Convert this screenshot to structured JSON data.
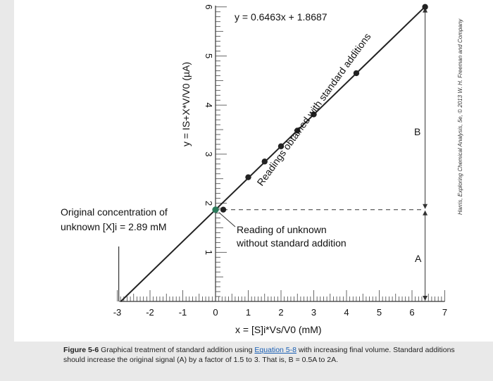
{
  "chart_data": {
    "type": "scatter",
    "equation": "y = 0.6463x + 1.8687",
    "slope": 0.6463,
    "intercept": 1.8687,
    "x_intercept": -2.89,
    "xlabel": "x = [S]i*Vs/V0 (mM)",
    "ylabel": "y = IS+X*V/V0 (µA)",
    "xlim": [
      -3,
      7
    ],
    "ylim": [
      0,
      6
    ],
    "x_ticks": [
      "-3",
      "-2",
      "-1",
      "0",
      "1",
      "2",
      "3",
      "4",
      "5",
      "6",
      "7"
    ],
    "y_ticks": [
      "1",
      "2",
      "3",
      "4",
      "5",
      "6"
    ],
    "grid": false,
    "series": [
      {
        "name": "Readings obtained with standard additions",
        "x": [
          0,
          1,
          1.5,
          2,
          2.5,
          3,
          4.3,
          6.4
        ],
        "y": [
          1.87,
          2.53,
          2.85,
          3.16,
          3.48,
          3.81,
          4.65,
          6.0
        ]
      }
    ],
    "annotations": {
      "original_concentration_line1": "Original concentration of",
      "original_concentration_line2": "unknown [X]i = 2.89 mM",
      "reading_unknown_line1": "Reading of unknown",
      "reading_unknown_line2": "without standard addition",
      "label_a": "A",
      "label_b": "B"
    },
    "credit": "Harris, Exploring Chemical Analysis, 5e, © 2013 W. H. Freeman and Company",
    "colors": {
      "line": "#222222",
      "point": "#222222",
      "unknown_point": "#2a7a5a",
      "background": "#ffffff"
    }
  },
  "caption": {
    "figure_label": "Figure 5-6",
    "text_before_link": "Graphical treatment of standard addition using",
    "link_text": "Equation 5-8",
    "text_after_link": "with increasing final volume. Standard additions should increase the original signal (A) by a factor of 1.5 to 3. That is, B = 0.5A to 2A."
  }
}
